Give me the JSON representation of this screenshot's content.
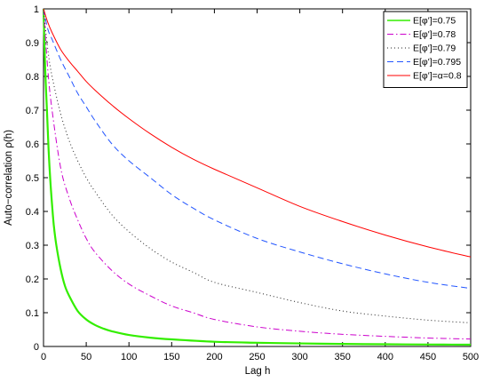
{
  "chart_data": {
    "type": "line",
    "title": "",
    "xlabel": "Lag h",
    "ylabel": "Auto−correlation ρ(h)",
    "xlim": [
      0,
      500
    ],
    "ylim": [
      0,
      1
    ],
    "xticks": [
      0,
      50,
      100,
      150,
      200,
      250,
      300,
      350,
      400,
      450,
      500
    ],
    "yticks": [
      0,
      0.1,
      0.2,
      0.3,
      0.4,
      0.5,
      0.6,
      0.7,
      0.8,
      0.9,
      1
    ],
    "grid": false,
    "legend_position": "top-right",
    "series": [
      {
        "name": "E[φ']=0.75",
        "color": "#33ee00",
        "style": "solid-thick",
        "x": [
          0,
          2,
          4,
          6,
          8,
          10,
          12,
          15,
          20,
          25,
          30,
          40,
          50,
          60,
          70,
          80,
          100,
          125,
          150,
          200,
          250,
          300,
          350,
          400,
          450,
          500
        ],
        "y": [
          1,
          0.82,
          0.7,
          0.58,
          0.49,
          0.42,
          0.36,
          0.3,
          0.23,
          0.18,
          0.15,
          0.105,
          0.08,
          0.064,
          0.053,
          0.045,
          0.034,
          0.026,
          0.021,
          0.014,
          0.011,
          0.009,
          0.0075,
          0.0065,
          0.0058,
          0.0052
        ]
      },
      {
        "name": "E[φ']=0.78",
        "color": "#cc00cc",
        "style": "dashdot",
        "x": [
          0,
          5,
          10,
          20,
          30,
          40,
          50,
          60,
          80,
          100,
          125,
          150,
          175,
          200,
          250,
          300,
          350,
          400,
          450,
          500
        ],
        "y": [
          1,
          0.82,
          0.7,
          0.53,
          0.44,
          0.375,
          0.32,
          0.28,
          0.225,
          0.185,
          0.15,
          0.12,
          0.1,
          0.08,
          0.058,
          0.045,
          0.036,
          0.03,
          0.025,
          0.022
        ]
      },
      {
        "name": "E[φ']=0.79",
        "color": "#222222",
        "style": "dotted",
        "x": [
          0,
          5,
          10,
          20,
          30,
          40,
          50,
          60,
          80,
          100,
          125,
          150,
          175,
          200,
          250,
          300,
          350,
          400,
          450,
          500
        ],
        "y": [
          1,
          0.88,
          0.8,
          0.69,
          0.61,
          0.55,
          0.5,
          0.46,
          0.39,
          0.34,
          0.29,
          0.25,
          0.22,
          0.19,
          0.16,
          0.13,
          0.105,
          0.09,
          0.078,
          0.07
        ]
      },
      {
        "name": "E[φ']=0.795",
        "color": "#2255ff",
        "style": "dashed",
        "x": [
          0,
          5,
          10,
          20,
          30,
          40,
          50,
          60,
          80,
          100,
          125,
          150,
          175,
          200,
          250,
          300,
          350,
          400,
          450,
          500
        ],
        "y": [
          1,
          0.94,
          0.91,
          0.85,
          0.8,
          0.75,
          0.71,
          0.67,
          0.6,
          0.55,
          0.5,
          0.45,
          0.41,
          0.375,
          0.32,
          0.28,
          0.245,
          0.215,
          0.19,
          0.172
        ]
      },
      {
        "name": "E[φ']=α=0.8",
        "color": "#ff0000",
        "style": "solid",
        "x": [
          0,
          5,
          10,
          20,
          30,
          40,
          50,
          60,
          80,
          100,
          125,
          150,
          175,
          200,
          250,
          300,
          350,
          400,
          450,
          500
        ],
        "y": [
          1,
          0.96,
          0.93,
          0.88,
          0.845,
          0.815,
          0.785,
          0.76,
          0.715,
          0.675,
          0.63,
          0.59,
          0.555,
          0.525,
          0.47,
          0.415,
          0.37,
          0.33,
          0.295,
          0.265
        ]
      }
    ]
  }
}
